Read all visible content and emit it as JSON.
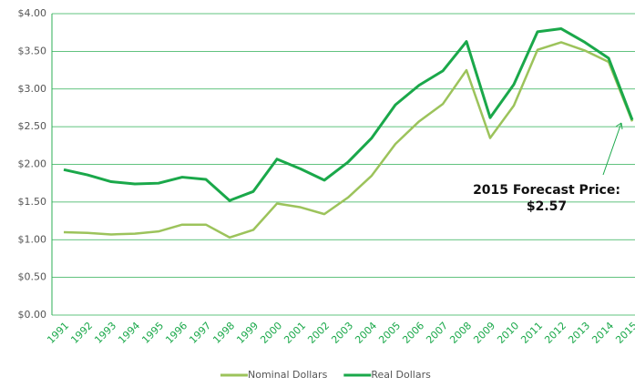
{
  "chart_data": {
    "type": "line",
    "categories": [
      "1991",
      "1992",
      "1993",
      "1994",
      "1995",
      "1996",
      "1997",
      "1998",
      "1999",
      "2000",
      "2001",
      "2002",
      "2003",
      "2004",
      "2005",
      "2006",
      "2007",
      "2008",
      "2009",
      "2010",
      "2011",
      "2012",
      "2013",
      "2014",
      "2015"
    ],
    "series": [
      {
        "name": "Nominal Dollars",
        "color": "#9cc35b",
        "values": [
          1.1,
          1.09,
          1.07,
          1.08,
          1.11,
          1.2,
          1.2,
          1.03,
          1.13,
          1.48,
          1.43,
          1.34,
          1.56,
          1.85,
          2.27,
          2.57,
          2.8,
          3.25,
          2.35,
          2.78,
          3.52,
          3.62,
          3.51,
          3.36,
          2.57
        ]
      },
      {
        "name": "Real Dollars",
        "color": "#1aa84a",
        "values": [
          1.93,
          1.86,
          1.77,
          1.74,
          1.75,
          1.83,
          1.8,
          1.52,
          1.64,
          2.07,
          1.94,
          1.79,
          2.03,
          2.35,
          2.79,
          3.05,
          3.24,
          3.63,
          2.62,
          3.06,
          3.76,
          3.8,
          3.62,
          3.41,
          2.59
        ]
      }
    ],
    "ylim": [
      0,
      4
    ],
    "yticks": [
      {
        "value": 0,
        "label": "$0.00"
      },
      {
        "value": 0.5,
        "label": "$0.50"
      },
      {
        "value": 1,
        "label": "$1.00"
      },
      {
        "value": 1.5,
        "label": "$1.50"
      },
      {
        "value": 2,
        "label": "$2.00"
      },
      {
        "value": 2.5,
        "label": "$2.50"
      },
      {
        "value": 3,
        "label": "$3.00"
      },
      {
        "value": 3.5,
        "label": "$3.50"
      },
      {
        "value": 4,
        "label": "$4.00"
      }
    ],
    "grid": true,
    "legend": "bottom",
    "annotation": [
      "2015 Forecast Price:",
      "$2.57"
    ]
  }
}
